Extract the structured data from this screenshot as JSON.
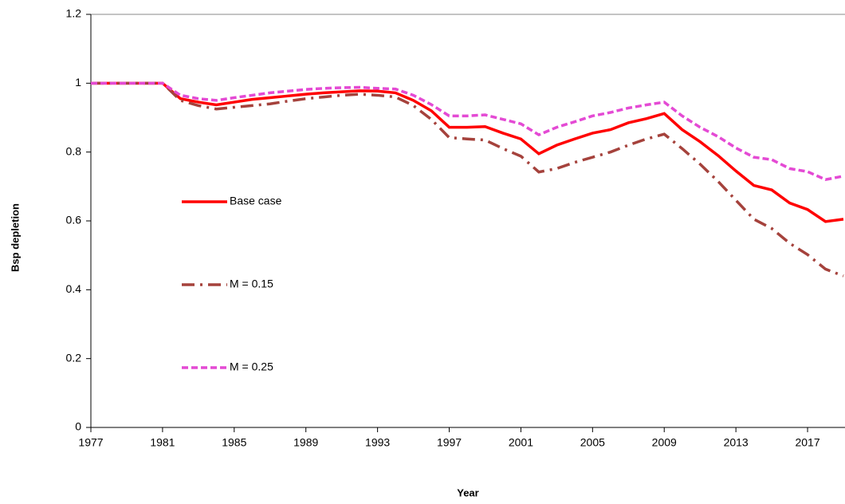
{
  "chart_data": {
    "type": "line",
    "x_label": "Year",
    "y_label": "Bsp depletion",
    "x": [
      1977,
      1978,
      1979,
      1980,
      1981,
      1982,
      1983,
      1984,
      1985,
      1986,
      1987,
      1988,
      1989,
      1990,
      1991,
      1992,
      1993,
      1994,
      1995,
      1996,
      1997,
      1998,
      1999,
      2000,
      2001,
      2002,
      2003,
      2004,
      2005,
      2006,
      2007,
      2008,
      2009,
      2010,
      2011,
      2012,
      2013,
      2014,
      2015,
      2016,
      2017,
      2018,
      2019
    ],
    "series": [
      {
        "name": "Base case",
        "color": "#ff0000",
        "dash": "solid",
        "values": [
          1.0,
          1.0,
          1.0,
          1.0,
          1.0,
          0.955,
          0.945,
          0.937,
          0.945,
          0.953,
          0.958,
          0.963,
          0.968,
          0.972,
          0.975,
          0.978,
          0.977,
          0.972,
          0.95,
          0.92,
          0.872,
          0.872,
          0.874,
          0.855,
          0.838,
          0.795,
          0.82,
          0.838,
          0.855,
          0.865,
          0.885,
          0.897,
          0.912,
          0.865,
          0.83,
          0.79,
          0.745,
          0.703,
          0.69,
          0.652,
          0.633,
          0.598,
          0.605
        ]
      },
      {
        "name": "M = 0.15",
        "color": "#a5423c",
        "dash": "dashdot",
        "values": [
          1.0,
          1.0,
          1.0,
          1.0,
          1.0,
          0.95,
          0.935,
          0.925,
          0.93,
          0.935,
          0.94,
          0.948,
          0.955,
          0.96,
          0.965,
          0.968,
          0.965,
          0.96,
          0.935,
          0.895,
          0.842,
          0.838,
          0.835,
          0.81,
          0.788,
          0.742,
          0.752,
          0.77,
          0.785,
          0.8,
          0.82,
          0.838,
          0.852,
          0.81,
          0.765,
          0.715,
          0.66,
          0.605,
          0.578,
          0.535,
          0.502,
          0.46,
          0.44
        ]
      },
      {
        "name": "M = 0.25",
        "color": "#e44ad4",
        "dash": "dashed",
        "values": [
          1.0,
          1.0,
          1.0,
          1.0,
          1.0,
          0.965,
          0.955,
          0.95,
          0.958,
          0.965,
          0.972,
          0.977,
          0.982,
          0.985,
          0.987,
          0.988,
          0.985,
          0.983,
          0.965,
          0.938,
          0.905,
          0.905,
          0.908,
          0.895,
          0.882,
          0.85,
          0.872,
          0.888,
          0.905,
          0.915,
          0.928,
          0.937,
          0.945,
          0.905,
          0.872,
          0.845,
          0.812,
          0.785,
          0.778,
          0.752,
          0.743,
          0.72,
          0.73
        ]
      }
    ],
    "xlim": [
      1977,
      2019
    ],
    "xticks": [
      1977,
      1981,
      1985,
      1989,
      1993,
      1997,
      2001,
      2005,
      2009,
      2013,
      2017
    ],
    "ylim": [
      0,
      1.2
    ],
    "yticks": [
      0,
      0.2,
      0.4,
      0.6,
      0.8,
      1,
      1.2
    ],
    "grid": false,
    "legend": "inside-left"
  }
}
